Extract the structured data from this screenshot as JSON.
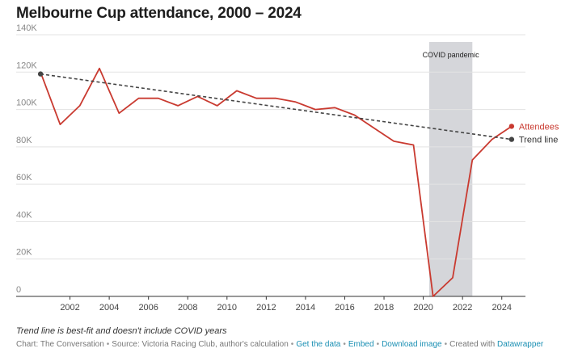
{
  "header": {
    "title": "Melbourne Cup attendance, 2000 – 2024"
  },
  "chart_data": {
    "type": "line",
    "title": "Melbourne Cup attendance, 2000 – 2024",
    "xlabel": "",
    "ylabel": "",
    "xlim": [
      2000,
      2025
    ],
    "ylim": [
      0,
      140000
    ],
    "x_ticks": [
      {
        "value": 2002,
        "label": "2002"
      },
      {
        "value": 2004,
        "label": "2004"
      },
      {
        "value": 2006,
        "label": "2006"
      },
      {
        "value": 2008,
        "label": "2008"
      },
      {
        "value": 2010,
        "label": "2010"
      },
      {
        "value": 2012,
        "label": "2012"
      },
      {
        "value": 2014,
        "label": "2014"
      },
      {
        "value": 2016,
        "label": "2016"
      },
      {
        "value": 2018,
        "label": "2018"
      },
      {
        "value": 2020,
        "label": "2020"
      },
      {
        "value": 2022,
        "label": "2022"
      },
      {
        "value": 2024,
        "label": "2024"
      }
    ],
    "y_ticks": [
      {
        "value": 0,
        "label": "0"
      },
      {
        "value": 20000,
        "label": "20K"
      },
      {
        "value": 40000,
        "label": "40K"
      },
      {
        "value": 60000,
        "label": "60K"
      },
      {
        "value": 80000,
        "label": "80K"
      },
      {
        "value": 100000,
        "label": "100K"
      },
      {
        "value": 120000,
        "label": "120K"
      },
      {
        "value": 140000,
        "label": "140K"
      }
    ],
    "grid": true,
    "annotation": {
      "label": "COVID pandemic",
      "x_start": 2020.3,
      "x_end": 2022.5,
      "color": "#d5d6da"
    },
    "series": [
      {
        "name": "Attendees",
        "color": "#c93a30",
        "style": "solid",
        "x": [
          2000.5,
          2001.5,
          2002.5,
          2003.5,
          2004.5,
          2005.5,
          2006.5,
          2007.5,
          2008.5,
          2009.5,
          2010.5,
          2011.5,
          2012.5,
          2013.5,
          2014.5,
          2015.5,
          2016.5,
          2017.5,
          2018.5,
          2019.5,
          2020.5,
          2021.5,
          2022.5,
          2023.5,
          2024.5
        ],
        "values": [
          120000,
          92000,
          102000,
          122000,
          98000,
          106000,
          106000,
          102000,
          107000,
          102000,
          110000,
          106000,
          106000,
          104000,
          100000,
          101000,
          97000,
          90000,
          83000,
          81000,
          0,
          10000,
          73000,
          84000,
          91000
        ]
      },
      {
        "name": "Trend line",
        "color": "#444444",
        "style": "dashed",
        "x": [
          2000.5,
          2024.5
        ],
        "values": [
          119000,
          84000
        ]
      }
    ]
  },
  "note": "Trend line is best-fit and doesn't include COVID years",
  "footer": {
    "credit": "Chart: The Conversation",
    "source": "Source: Victoria Racing Club, author's calculation",
    "get_data": "Get the data",
    "embed": "Embed",
    "download": "Download image",
    "created": "Created with",
    "datawrapper": "Datawrapper"
  }
}
